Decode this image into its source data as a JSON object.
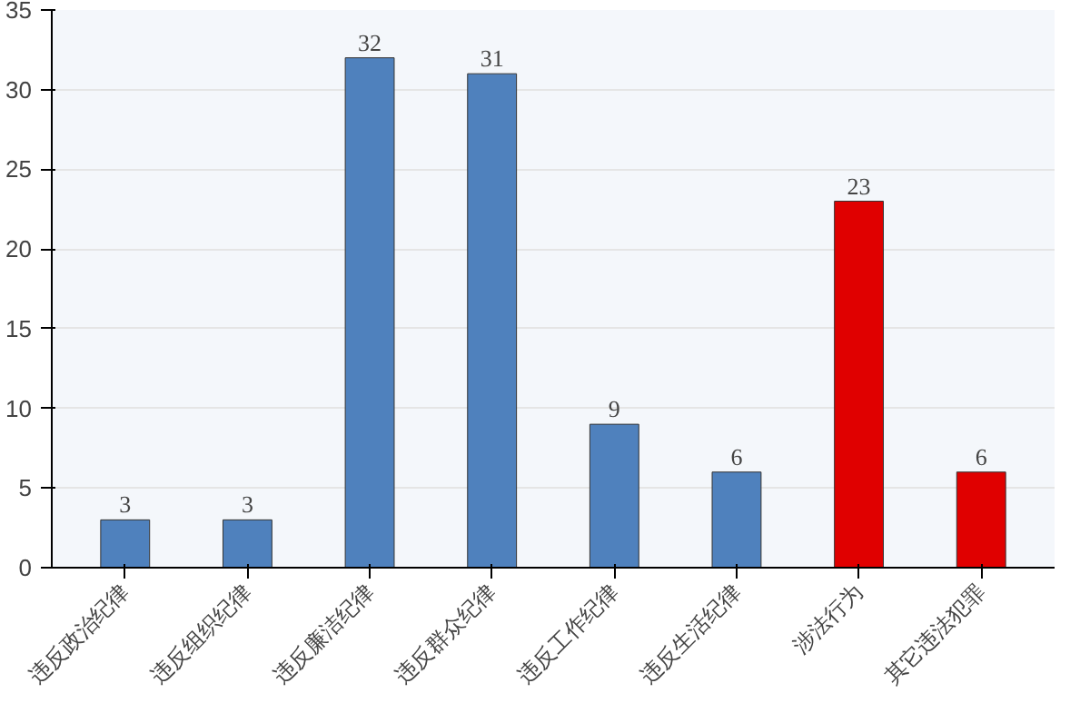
{
  "chart_data": {
    "type": "bar",
    "categories": [
      "违反政治纪律",
      "违反组织纪律",
      "违反廉洁纪律",
      "违反群众纪律",
      "违反工作纪律",
      "违反生活纪律",
      "涉法行为",
      "其它违法犯罪"
    ],
    "values": [
      3,
      3,
      32,
      31,
      9,
      6,
      23,
      6
    ],
    "colors": [
      "#4f81bd",
      "#4f81bd",
      "#4f81bd",
      "#4f81bd",
      "#4f81bd",
      "#4f81bd",
      "#e00000",
      "#e00000"
    ],
    "ylim": [
      0,
      35
    ],
    "yticks": [
      0,
      5,
      10,
      15,
      20,
      25,
      30,
      35
    ],
    "grid": "y",
    "data_labels": true
  }
}
